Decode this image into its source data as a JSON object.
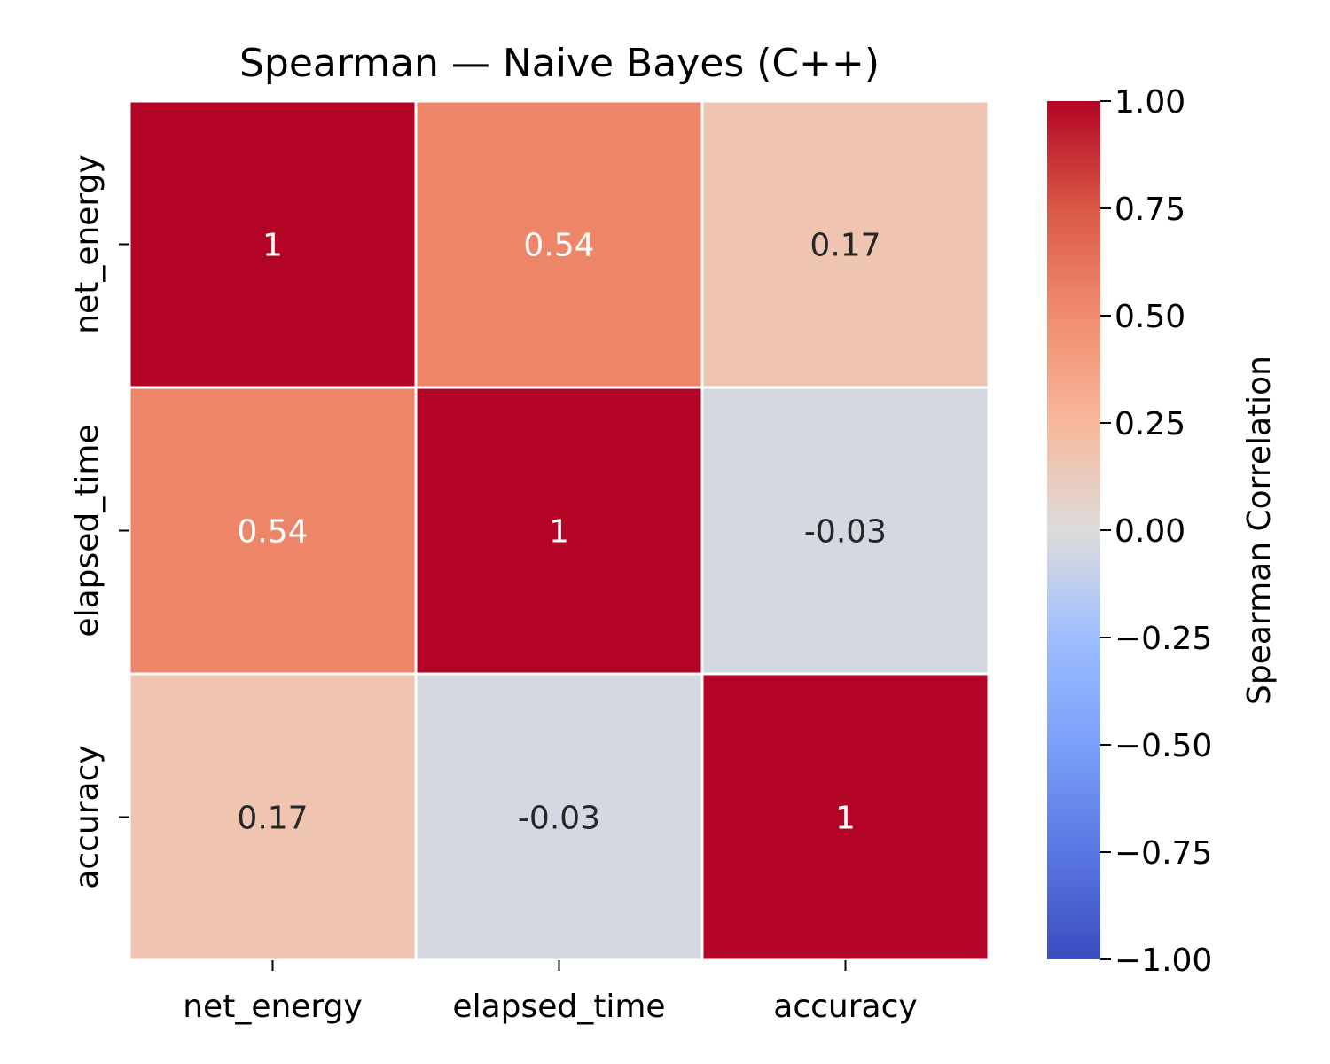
{
  "chart_data": {
    "type": "heatmap",
    "title": "Spearman — Naive Bayes (C++)",
    "x_labels": [
      "net_energy",
      "elapsed_time",
      "accuracy"
    ],
    "y_labels": [
      "net_energy",
      "elapsed_time",
      "accuracy"
    ],
    "values": [
      [
        1,
        0.54,
        0.17
      ],
      [
        0.54,
        1,
        -0.03
      ],
      [
        0.17,
        -0.03,
        1
      ]
    ],
    "annotations": [
      [
        "1",
        "0.54",
        "0.17"
      ],
      [
        "0.54",
        "1",
        "-0.03"
      ],
      [
        "0.17",
        "-0.03",
        "1"
      ]
    ],
    "colormap": "coolwarm",
    "vmin": -1,
    "vmax": 1,
    "colorbar": {
      "label": "Spearman Correlation",
      "ticks": [
        1,
        0.75,
        0.5,
        0.25,
        0,
        -0.25,
        -0.5,
        -0.75,
        -1
      ],
      "tick_labels": [
        "1.00",
        "0.75",
        "0.50",
        "0.25",
        "0.00",
        "−0.25",
        "−0.50",
        "−0.75",
        "−1.00"
      ]
    },
    "grid": false
  }
}
